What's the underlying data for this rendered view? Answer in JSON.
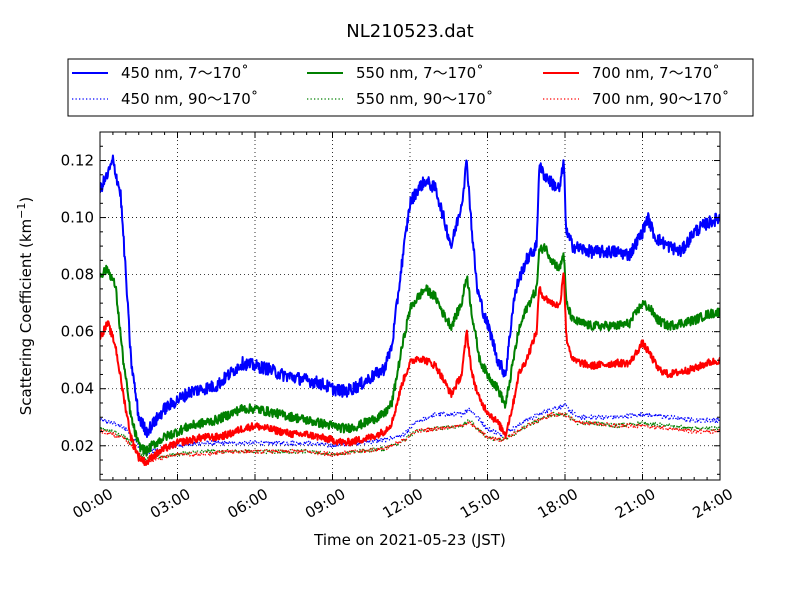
{
  "chart_data": {
    "type": "line",
    "title": "NL210523.dat",
    "xlabel": "Time on 2021-05-23 (JST)",
    "ylabel_main": "Scattering Coefficient (km",
    "ylabel_exp": "−1",
    "ylabel_close": ")",
    "xlim": [
      0,
      24
    ],
    "ylim": [
      0.008,
      0.13
    ],
    "x_ticks": [
      0,
      3,
      6,
      9,
      12,
      15,
      18,
      21,
      24
    ],
    "x_tick_labels": [
      "00:00",
      "03:00",
      "06:00",
      "09:00",
      "12:00",
      "15:00",
      "18:00",
      "21:00",
      "24:00"
    ],
    "y_ticks": [
      0.02,
      0.04,
      0.06,
      0.08,
      0.1,
      0.12
    ],
    "y_tick_labels": [
      "0.02",
      "0.04",
      "0.06",
      "0.08",
      "0.10",
      "0.12"
    ],
    "grid": true,
    "legend_position": "top",
    "series": [
      {
        "name": "450 nm, 7～170˚",
        "color": "#0000ff",
        "style": "solid",
        "noise": 0.0022,
        "x": [
          0,
          0.3,
          0.5,
          0.8,
          1.0,
          1.2,
          1.5,
          1.8,
          2.0,
          2.5,
          3.0,
          3.5,
          4.0,
          4.5,
          5.0,
          5.5,
          6.0,
          6.5,
          7.0,
          7.5,
          8.0,
          8.5,
          9.0,
          9.5,
          10.0,
          10.5,
          11.0,
          11.3,
          11.7,
          12.0,
          12.3,
          12.6,
          13.0,
          13.3,
          13.6,
          14.0,
          14.2,
          14.4,
          14.6,
          14.9,
          15.1,
          15.4,
          15.7,
          16.0,
          16.2,
          16.5,
          16.9,
          17.0,
          17.2,
          17.5,
          17.8,
          17.95,
          18.05,
          18.3,
          19.0,
          20.0,
          20.5,
          21.0,
          21.2,
          21.5,
          22.0,
          22.5,
          23.0,
          23.5,
          24.0
        ],
        "y": [
          0.11,
          0.115,
          0.12,
          0.108,
          0.08,
          0.05,
          0.03,
          0.025,
          0.027,
          0.033,
          0.036,
          0.039,
          0.04,
          0.041,
          0.045,
          0.049,
          0.048,
          0.047,
          0.045,
          0.044,
          0.043,
          0.042,
          0.04,
          0.039,
          0.041,
          0.044,
          0.047,
          0.055,
          0.085,
          0.105,
          0.11,
          0.113,
          0.11,
          0.1,
          0.09,
          0.105,
          0.12,
          0.095,
          0.075,
          0.065,
          0.06,
          0.05,
          0.045,
          0.07,
          0.078,
          0.085,
          0.09,
          0.118,
          0.115,
          0.112,
          0.11,
          0.12,
          0.095,
          0.09,
          0.088,
          0.088,
          0.087,
          0.095,
          0.1,
          0.093,
          0.09,
          0.088,
          0.095,
          0.098,
          0.1
        ]
      },
      {
        "name": "450 nm, 90～170˚",
        "color": "#0000ff",
        "style": "dotted",
        "noise": 0.0008,
        "x": [
          0,
          0.5,
          1.0,
          1.5,
          1.8,
          2.0,
          3.0,
          4.0,
          5.0,
          6.0,
          7.0,
          8.0,
          9.0,
          10.0,
          11.0,
          11.8,
          12.2,
          13.0,
          14.0,
          14.3,
          14.6,
          15.0,
          15.5,
          16.0,
          16.5,
          17.0,
          17.5,
          18.0,
          18.5,
          19.0,
          20.0,
          21.0,
          22.0,
          23.0,
          24.0
        ],
        "y": [
          0.029,
          0.028,
          0.026,
          0.02,
          0.017,
          0.018,
          0.02,
          0.021,
          0.021,
          0.021,
          0.021,
          0.021,
          0.02,
          0.021,
          0.022,
          0.024,
          0.028,
          0.031,
          0.031,
          0.033,
          0.03,
          0.026,
          0.024,
          0.026,
          0.029,
          0.031,
          0.033,
          0.034,
          0.03,
          0.03,
          0.03,
          0.031,
          0.03,
          0.029,
          0.029
        ]
      },
      {
        "name": "550 nm, 7～170˚",
        "color": "#008000",
        "style": "solid",
        "noise": 0.0016,
        "x": [
          0,
          0.3,
          0.6,
          0.9,
          1.2,
          1.5,
          1.8,
          2.0,
          2.5,
          3.0,
          3.5,
          4.0,
          4.5,
          5.0,
          5.5,
          6.0,
          6.5,
          7.0,
          7.5,
          8.0,
          8.5,
          9.0,
          9.5,
          10.0,
          10.5,
          11.0,
          11.3,
          11.7,
          12.0,
          12.3,
          12.6,
          13.0,
          13.3,
          13.6,
          14.0,
          14.2,
          14.4,
          14.7,
          15.0,
          15.4,
          15.7,
          16.0,
          16.2,
          16.5,
          16.9,
          17.0,
          17.2,
          17.5,
          17.8,
          17.95,
          18.05,
          18.3,
          19.0,
          20.0,
          20.5,
          21.0,
          21.3,
          21.6,
          22.0,
          22.5,
          23.0,
          23.5,
          24.0
        ],
        "y": [
          0.08,
          0.082,
          0.076,
          0.05,
          0.03,
          0.02,
          0.018,
          0.02,
          0.023,
          0.025,
          0.027,
          0.028,
          0.029,
          0.031,
          0.033,
          0.033,
          0.032,
          0.031,
          0.03,
          0.029,
          0.028,
          0.027,
          0.026,
          0.027,
          0.029,
          0.031,
          0.035,
          0.055,
          0.068,
          0.072,
          0.075,
          0.072,
          0.066,
          0.062,
          0.07,
          0.08,
          0.066,
          0.05,
          0.045,
          0.04,
          0.034,
          0.05,
          0.06,
          0.068,
          0.075,
          0.088,
          0.09,
          0.085,
          0.082,
          0.088,
          0.07,
          0.064,
          0.062,
          0.062,
          0.063,
          0.07,
          0.068,
          0.064,
          0.062,
          0.063,
          0.064,
          0.066,
          0.067
        ]
      },
      {
        "name": "550 nm, 90～170˚",
        "color": "#008000",
        "style": "dotted",
        "noise": 0.0007,
        "x": [
          0,
          0.5,
          1.0,
          1.5,
          1.8,
          2.0,
          3.0,
          4.0,
          5.0,
          6.0,
          7.0,
          8.0,
          9.0,
          10.0,
          11.0,
          11.8,
          12.2,
          13.0,
          14.0,
          14.3,
          14.6,
          15.0,
          15.5,
          16.0,
          16.5,
          17.0,
          17.5,
          18.0,
          18.5,
          19.0,
          20.0,
          21.0,
          22.0,
          23.0,
          24.0
        ],
        "y": [
          0.026,
          0.025,
          0.023,
          0.018,
          0.015,
          0.016,
          0.017,
          0.018,
          0.018,
          0.018,
          0.018,
          0.018,
          0.017,
          0.018,
          0.019,
          0.022,
          0.025,
          0.026,
          0.027,
          0.029,
          0.026,
          0.023,
          0.022,
          0.024,
          0.027,
          0.029,
          0.031,
          0.031,
          0.028,
          0.028,
          0.027,
          0.028,
          0.027,
          0.026,
          0.026
        ]
      },
      {
        "name": "700 nm, 7～170˚",
        "color": "#ff0000",
        "style": "solid",
        "noise": 0.0013,
        "x": [
          0,
          0.3,
          0.6,
          0.9,
          1.2,
          1.5,
          1.8,
          2.0,
          2.5,
          3.0,
          3.5,
          4.0,
          4.5,
          5.0,
          5.5,
          6.0,
          6.5,
          7.0,
          7.5,
          8.0,
          8.5,
          9.0,
          9.5,
          10.0,
          10.5,
          11.0,
          11.3,
          11.7,
          12.0,
          12.3,
          12.6,
          13.0,
          13.3,
          13.6,
          14.0,
          14.2,
          14.4,
          14.7,
          15.0,
          15.4,
          15.7,
          16.0,
          16.2,
          16.5,
          16.9,
          17.0,
          17.2,
          17.5,
          17.8,
          17.95,
          18.05,
          18.3,
          19.0,
          20.0,
          20.5,
          21.0,
          21.3,
          21.6,
          22.0,
          22.5,
          23.0,
          23.5,
          24.0
        ],
        "y": [
          0.058,
          0.063,
          0.055,
          0.038,
          0.023,
          0.016,
          0.014,
          0.016,
          0.019,
          0.021,
          0.022,
          0.023,
          0.023,
          0.024,
          0.026,
          0.027,
          0.026,
          0.025,
          0.024,
          0.024,
          0.023,
          0.022,
          0.021,
          0.022,
          0.023,
          0.025,
          0.028,
          0.042,
          0.049,
          0.051,
          0.05,
          0.048,
          0.043,
          0.038,
          0.045,
          0.06,
          0.045,
          0.036,
          0.032,
          0.028,
          0.024,
          0.035,
          0.045,
          0.05,
          0.06,
          0.075,
          0.072,
          0.07,
          0.069,
          0.082,
          0.058,
          0.05,
          0.048,
          0.049,
          0.049,
          0.056,
          0.052,
          0.047,
          0.045,
          0.046,
          0.047,
          0.049,
          0.05
        ]
      },
      {
        "name": "700 nm, 90～170˚",
        "color": "#ff0000",
        "style": "dotted",
        "noise": 0.0007,
        "x": [
          0,
          0.5,
          1.0,
          1.5,
          1.8,
          2.0,
          3.0,
          4.0,
          5.0,
          6.0,
          7.0,
          8.0,
          9.0,
          10.0,
          11.0,
          11.8,
          12.2,
          13.0,
          14.0,
          14.3,
          14.6,
          15.0,
          15.5,
          16.0,
          16.5,
          17.0,
          17.5,
          18.0,
          18.5,
          19.0,
          20.0,
          21.0,
          22.0,
          23.0,
          24.0
        ],
        "y": [
          0.025,
          0.024,
          0.022,
          0.017,
          0.014,
          0.015,
          0.017,
          0.017,
          0.018,
          0.018,
          0.018,
          0.018,
          0.017,
          0.018,
          0.019,
          0.022,
          0.025,
          0.026,
          0.027,
          0.028,
          0.026,
          0.023,
          0.022,
          0.024,
          0.027,
          0.029,
          0.031,
          0.031,
          0.028,
          0.028,
          0.027,
          0.027,
          0.026,
          0.025,
          0.025
        ]
      }
    ]
  }
}
